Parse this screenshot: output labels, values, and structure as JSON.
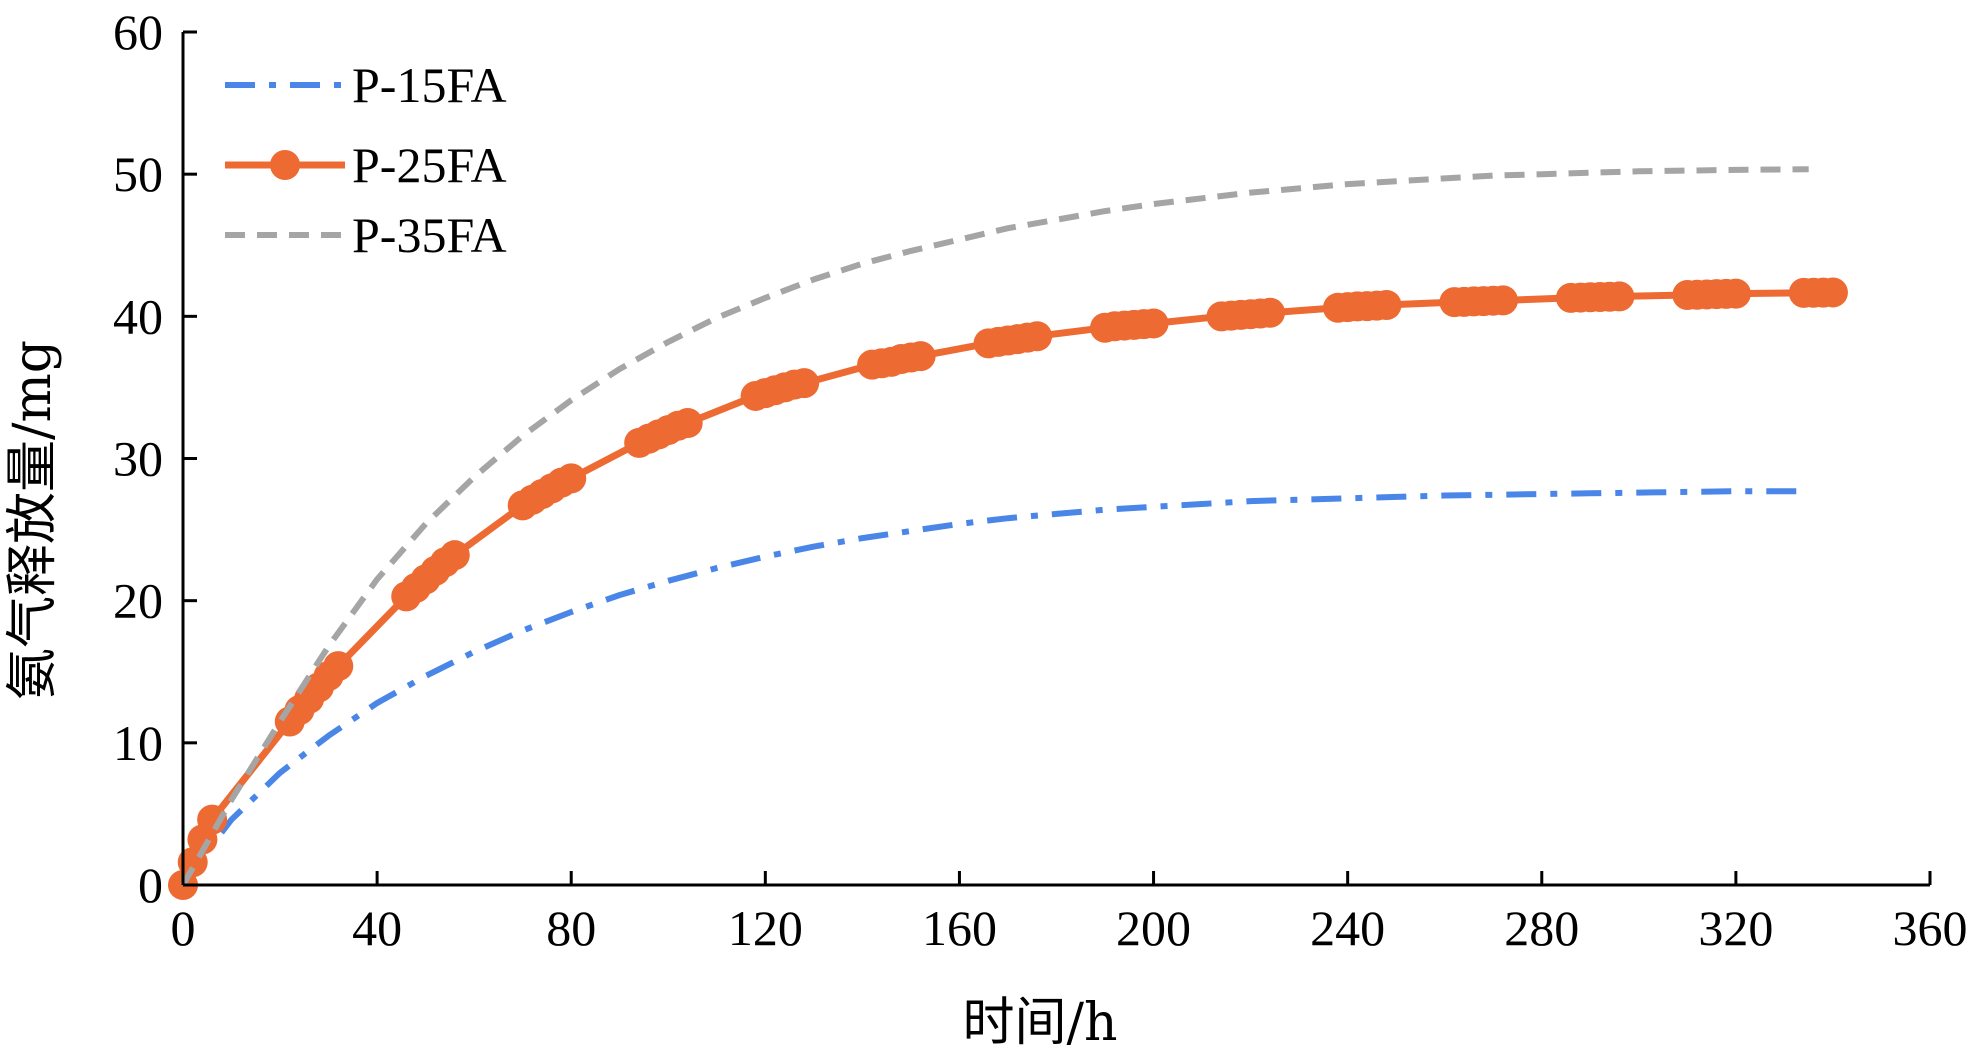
{
  "chart_data": {
    "type": "line",
    "title": "",
    "xlabel": "时间/h",
    "ylabel": "氨气释放量/mg",
    "xlim": [
      0,
      360
    ],
    "ylim": [
      0,
      60
    ],
    "xticks": [
      0,
      40,
      80,
      120,
      160,
      200,
      240,
      280,
      320,
      360
    ],
    "yticks": [
      0,
      10,
      20,
      30,
      40,
      50,
      60
    ],
    "grid": false,
    "legend_position": "top-left",
    "series": [
      {
        "name": "P-15FA",
        "color": "#4A86E8",
        "style": "dash-dot",
        "markers": false,
        "x": [
          0,
          5,
          10,
          20,
          30,
          40,
          50,
          60,
          70,
          80,
          90,
          100,
          110,
          120,
          130,
          140,
          150,
          160,
          170,
          180,
          190,
          200,
          210,
          220,
          230,
          240,
          250,
          260,
          270,
          280,
          290,
          300,
          310,
          320,
          335
        ],
        "y": [
          0,
          2.4,
          4.6,
          7.9,
          10.5,
          12.8,
          14.7,
          16.4,
          17.9,
          19.2,
          20.4,
          21.4,
          22.3,
          23.1,
          23.8,
          24.4,
          24.9,
          25.4,
          25.8,
          26.1,
          26.4,
          26.6,
          26.8,
          27.0,
          27.1,
          27.2,
          27.3,
          27.4,
          27.45,
          27.5,
          27.55,
          27.6,
          27.65,
          27.7,
          27.7
        ]
      },
      {
        "name": "P-25FA",
        "color": "#ED6A32",
        "style": "solid",
        "markers": true,
        "x": [
          0,
          2,
          4,
          6,
          22,
          24,
          26,
          28,
          30,
          32,
          46,
          48,
          50,
          52,
          54,
          56,
          70,
          72,
          74,
          76,
          78,
          80,
          94,
          96,
          98,
          100,
          102,
          104,
          118,
          120,
          122,
          124,
          126,
          128,
          142,
          144,
          146,
          148,
          150,
          152,
          166,
          168,
          170,
          172,
          174,
          176,
          190,
          192,
          194,
          196,
          198,
          200,
          214,
          216,
          218,
          220,
          222,
          224,
          238,
          240,
          242,
          244,
          246,
          248,
          262,
          264,
          266,
          268,
          270,
          272,
          286,
          288,
          290,
          292,
          294,
          296,
          310,
          312,
          314,
          316,
          318,
          320,
          334,
          336,
          338,
          340
        ],
        "y": [
          0,
          1.6,
          3.2,
          4.6,
          11.5,
          12.3,
          13.1,
          13.9,
          14.7,
          15.4,
          20.3,
          20.9,
          21.5,
          22.1,
          22.7,
          23.2,
          26.7,
          27.1,
          27.5,
          27.9,
          28.3,
          28.6,
          31.1,
          31.4,
          31.7,
          32.0,
          32.3,
          32.5,
          34.4,
          34.6,
          34.8,
          35.0,
          35.2,
          35.3,
          36.6,
          36.7,
          36.8,
          37.0,
          37.1,
          37.2,
          38.1,
          38.2,
          38.3,
          38.4,
          38.5,
          38.6,
          39.2,
          39.3,
          39.35,
          39.4,
          39.45,
          39.5,
          40.0,
          40.05,
          40.1,
          40.15,
          40.2,
          40.25,
          40.6,
          40.65,
          40.7,
          40.72,
          40.75,
          40.8,
          41.0,
          41.02,
          41.05,
          41.07,
          41.1,
          41.12,
          41.3,
          41.32,
          41.34,
          41.36,
          41.38,
          41.4,
          41.5,
          41.52,
          41.54,
          41.56,
          41.58,
          41.6,
          41.65,
          41.66,
          41.67,
          41.68
        ]
      },
      {
        "name": "P-35FA",
        "color": "#A5A5A5",
        "style": "dashed",
        "markers": false,
        "x": [
          0,
          5,
          10,
          20,
          30,
          40,
          50,
          60,
          70,
          80,
          90,
          100,
          110,
          120,
          130,
          140,
          150,
          160,
          170,
          180,
          190,
          200,
          210,
          220,
          230,
          240,
          250,
          260,
          270,
          280,
          290,
          300,
          310,
          320,
          335
        ],
        "y": [
          0,
          3.0,
          6.0,
          11.5,
          16.8,
          21.5,
          25.4,
          28.7,
          31.6,
          34.1,
          36.3,
          38.2,
          39.9,
          41.3,
          42.6,
          43.7,
          44.6,
          45.4,
          46.2,
          46.8,
          47.4,
          47.9,
          48.3,
          48.7,
          49.0,
          49.3,
          49.5,
          49.7,
          49.9,
          50.0,
          50.1,
          50.2,
          50.25,
          50.3,
          50.35
        ]
      }
    ]
  }
}
